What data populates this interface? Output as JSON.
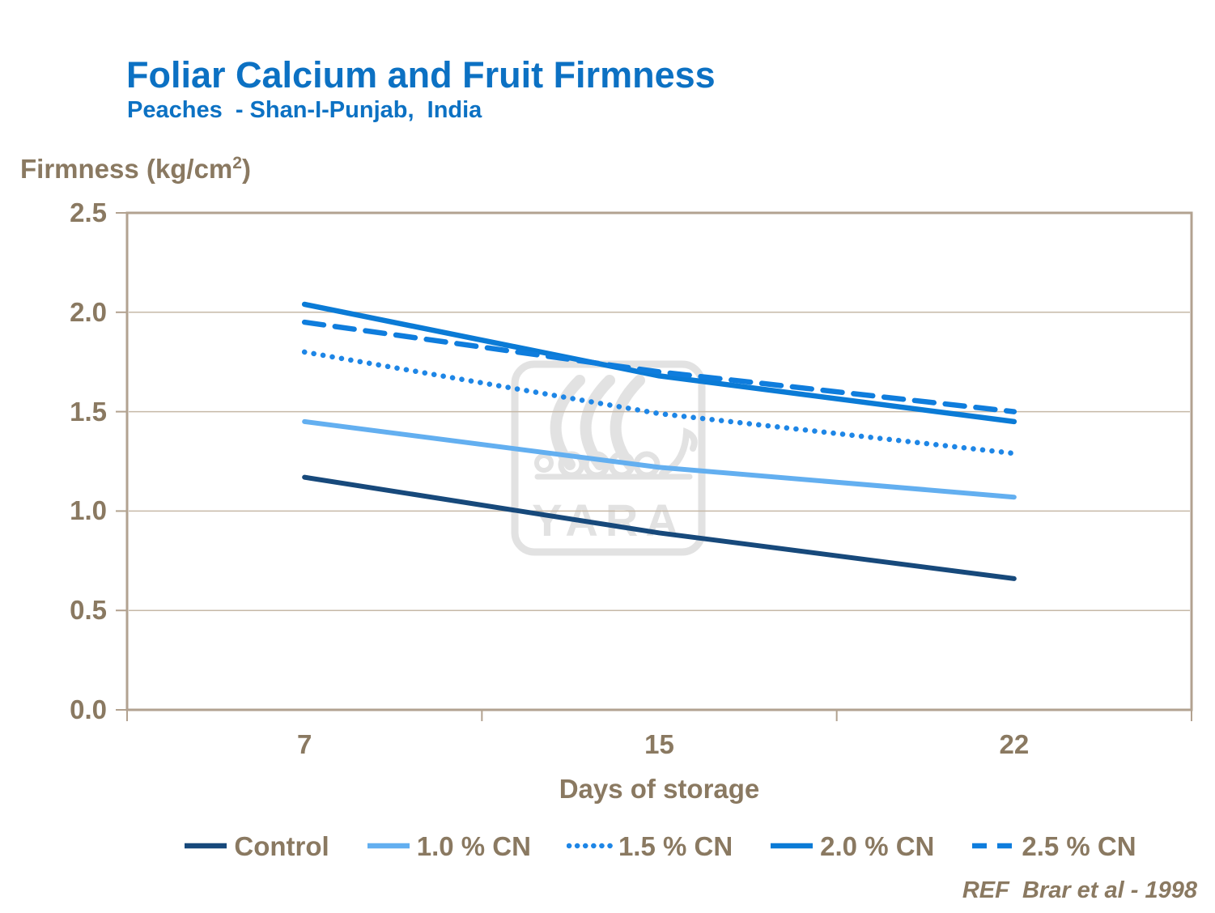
{
  "header": {
    "title": "Foliar Calcium and Fruit Firmness",
    "subtitle": "Peaches  - Shan-I-Punjab,  India"
  },
  "reference": "REF  Brar et al - 1998",
  "colors": {
    "title_blue": "#0C71C3",
    "text_tan": "#8A7961",
    "axis_border": "#B2A290",
    "gridline": "#C6B9A7",
    "watermark_gray": "#E2E2E2",
    "background": "#FFFFFF"
  },
  "chart_data": {
    "type": "line",
    "title": "Foliar Calcium and Fruit Firmness",
    "subtitle": "Peaches  - Shan-I-Punjab,  India",
    "xlabel": "Days of storage",
    "ylabel": "Firmness (kg/cm2)",
    "ylabel_parts": {
      "prefix": "Firmness (kg/cm",
      "sup": "2",
      "suffix": ")"
    },
    "x": [
      7,
      15,
      22
    ],
    "x_tick_labels": [
      "7",
      "15",
      "22"
    ],
    "y_ticks": [
      2.5,
      2.0,
      1.5,
      1.0,
      0.5,
      0.0
    ],
    "y_tick_labels": [
      "2.5",
      "2.0",
      "1.5",
      "1.0",
      "0.5",
      "0.0"
    ],
    "ylim": [
      0,
      2.5
    ],
    "grid": "horizontal gridlines at 0.5 steps",
    "legend_position": "bottom",
    "series": [
      {
        "name": "Control",
        "values": [
          1.17,
          0.89,
          0.66
        ],
        "color": "#17497B",
        "style": "solid",
        "width": 6
      },
      {
        "name": "1.0 % CN",
        "values": [
          1.45,
          1.22,
          1.07
        ],
        "color": "#63AFF0",
        "style": "solid",
        "width": 6
      },
      {
        "name": "1.5 % CN",
        "values": [
          1.8,
          1.49,
          1.29
        ],
        "color": "#1E86E6",
        "style": "dotted",
        "width": 6.5
      },
      {
        "name": "2.0 % CN",
        "values": [
          2.04,
          1.68,
          1.45
        ],
        "color": "#0B7BD6",
        "style": "solid",
        "width": 6.5
      },
      {
        "name": "2.5 % CN",
        "values": [
          1.95,
          1.7,
          1.5
        ],
        "color": "#0F7DDD",
        "style": "dashed",
        "width": 6.5
      }
    ],
    "watermark": "YARA"
  }
}
